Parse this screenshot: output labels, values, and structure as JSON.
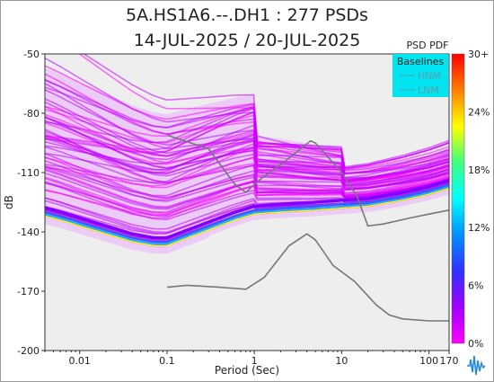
{
  "title_line1": "5A.HS1A6.--.DH1 : 277 PSDs",
  "title_line2": "14-JUL-2025 / 20-JUL-2025",
  "colorbar_title": "PSD PDF",
  "colorbar_labels": [
    "30+",
    "24%",
    "18%",
    "12%",
    "6%",
    "0%"
  ],
  "colorbar_colors": [
    "#ff00ff",
    "#a000ff",
    "#3030ff",
    "#0090ff",
    "#00ffff",
    "#40ff80",
    "#ffff00",
    "#ff8000",
    "#ff0000"
  ],
  "legend": {
    "title": "Baselines",
    "items": [
      {
        "label": "HNM"
      },
      {
        "label": "LNM"
      }
    ]
  },
  "logo_icon": "waveform-logo-icon",
  "chart_data": {
    "type": "heatmap",
    "xlabel": "Period (Sec)",
    "ylabel": "dB",
    "xscale": "log",
    "xlim": [
      0.004,
      170
    ],
    "ylim": [
      -200,
      -50
    ],
    "xticks": [
      0.01,
      0.1,
      1,
      10,
      100,
      170
    ],
    "xtick_labels": [
      "0.01",
      "0.1",
      "1",
      "10",
      "100",
      "170"
    ],
    "yticks": [
      -200,
      -170,
      -140,
      -110,
      -80,
      -50
    ],
    "ytick_labels": [
      "-200",
      "-170",
      "-140",
      "-110",
      "-80",
      "-50"
    ],
    "colors": {
      "background": "#eeeeee",
      "nlnm_hnm": "#777777",
      "mode": "#ffff00"
    },
    "mode_curve": {
      "period": [
        0.004,
        0.006,
        0.01,
        0.02,
        0.04,
        0.07,
        0.1,
        0.15,
        0.3,
        0.6,
        1,
        2,
        5,
        10,
        20,
        50,
        100,
        170
      ],
      "db": [
        -132,
        -134,
        -137,
        -141,
        -145,
        -147,
        -147,
        -144,
        -139,
        -134,
        -131,
        -130,
        -129,
        -128,
        -127,
        -124,
        -121,
        -118
      ]
    },
    "baselines": {
      "HNM": {
        "period": [
          0.1,
          0.22,
          0.3,
          0.6,
          0.8,
          1.2,
          2,
          4.4,
          5,
          10,
          15,
          20,
          30,
          60,
          100,
          170
        ],
        "db": [
          -91,
          -96,
          -98,
          -116,
          -120,
          -113,
          -106,
          -94,
          -95,
          -110,
          -122,
          -137,
          -136,
          -133,
          -131,
          -129
        ]
      },
      "LNM": {
        "period": [
          0.1,
          0.17,
          0.4,
          0.8,
          1.3,
          2.5,
          4,
          5,
          8,
          14,
          25,
          35,
          50,
          100,
          170
        ],
        "db": [
          -168,
          -167,
          -168,
          -169,
          -163,
          -147,
          -141,
          -144,
          -157,
          -165,
          -177,
          -182,
          -184,
          -185,
          -185
        ]
      }
    }
  }
}
